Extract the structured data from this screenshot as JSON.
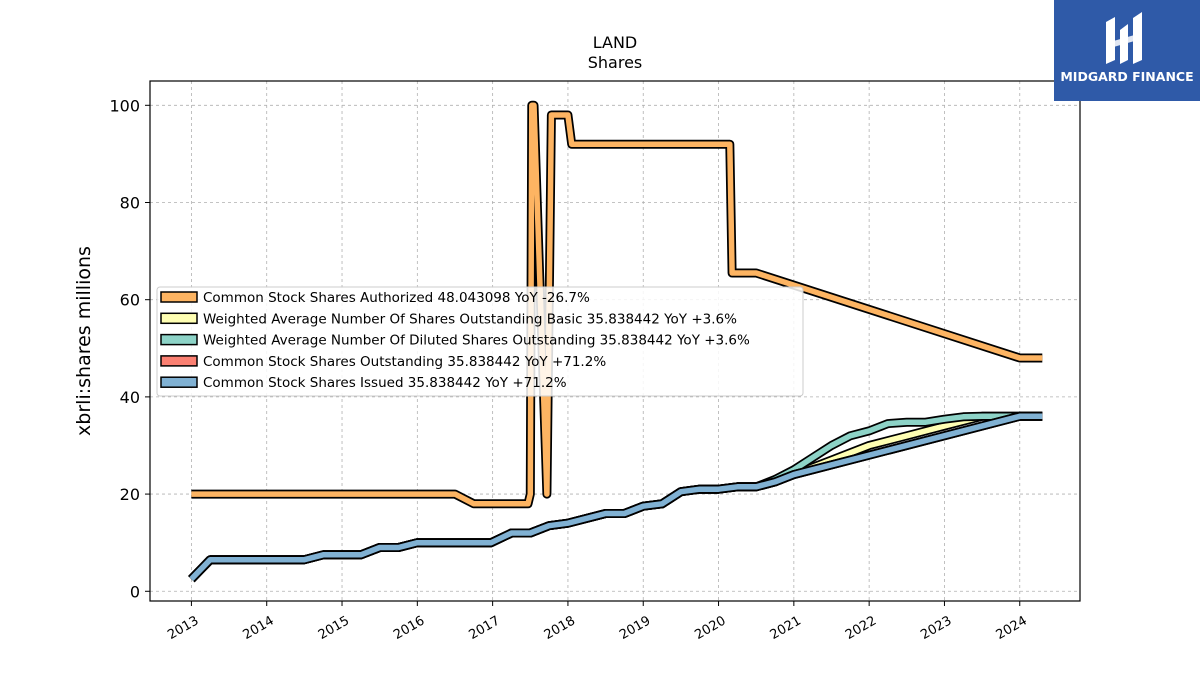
{
  "logo": {
    "text": "MIDGARD FINANCE",
    "color": "#2f5aa8"
  },
  "chart_data": {
    "type": "line",
    "title": "LAND",
    "subtitle": "Shares",
    "ylabel": "xbrli:shares millions",
    "xlim": [
      2012.45,
      2024.8
    ],
    "ylim": [
      -2,
      105
    ],
    "yticks": [
      0,
      20,
      40,
      60,
      80,
      100
    ],
    "xticks": [
      "2013",
      "2014",
      "2015",
      "2016",
      "2017",
      "2018",
      "2019",
      "2020",
      "2021",
      "2022",
      "2023",
      "2024"
    ],
    "grid": true,
    "legend_position": "center-left",
    "series": [
      {
        "name": "Common Stock Shares Authorized",
        "legend": "Common Stock Shares Authorized  48.043098 YoY -26.7%",
        "color": "#fdb462",
        "points": [
          [
            2013.0,
            20
          ],
          [
            2016.5,
            20
          ],
          [
            2016.75,
            18
          ],
          [
            2017.47,
            18
          ],
          [
            2017.5,
            20
          ],
          [
            2017.52,
            100
          ],
          [
            2017.55,
            100
          ],
          [
            2017.72,
            20
          ],
          [
            2017.78,
            98
          ],
          [
            2018.0,
            98
          ],
          [
            2018.05,
            92
          ],
          [
            2020.15,
            92
          ],
          [
            2020.18,
            65.5
          ],
          [
            2020.5,
            65.5
          ],
          [
            2024.0,
            48
          ],
          [
            2024.3,
            48
          ]
        ]
      },
      {
        "name": "Weighted Average Number Of Shares Outstanding Basic",
        "legend": "Weighted Average Number Of Shares Outstanding Basic  35.838442 YoY +3.6%",
        "color": "#ffffb3",
        "points": [
          [
            2013.0,
            2.5
          ],
          [
            2013.25,
            6.5
          ],
          [
            2014.5,
            6.5
          ],
          [
            2014.75,
            7.5
          ],
          [
            2015.25,
            7.5
          ],
          [
            2015.5,
            9
          ],
          [
            2015.75,
            9
          ],
          [
            2016.0,
            10
          ],
          [
            2016.98,
            10
          ],
          [
            2017.25,
            12
          ],
          [
            2017.5,
            12
          ],
          [
            2017.75,
            13.5
          ],
          [
            2018.0,
            14
          ],
          [
            2018.5,
            16
          ],
          [
            2018.75,
            16
          ],
          [
            2019.0,
            17.5
          ],
          [
            2019.25,
            18
          ],
          [
            2019.5,
            20.5
          ],
          [
            2019.75,
            21
          ],
          [
            2020.0,
            21
          ],
          [
            2020.25,
            21.5
          ],
          [
            2020.5,
            21.5
          ],
          [
            2020.75,
            22.5
          ],
          [
            2021.0,
            24
          ],
          [
            2021.5,
            27
          ],
          [
            2022.0,
            30
          ],
          [
            2022.5,
            32
          ],
          [
            2023.0,
            34
          ],
          [
            2023.5,
            36
          ],
          [
            2024.0,
            36
          ],
          [
            2024.3,
            36
          ]
        ]
      },
      {
        "name": "Weighted Average Number Of Diluted Shares Outstanding",
        "legend": "Weighted Average Number Of Diluted Shares Outstanding  35.838442 YoY +3.6%",
        "color": "#8dd3c7",
        "points": [
          [
            2013.0,
            2.5
          ],
          [
            2013.25,
            6.5
          ],
          [
            2014.5,
            6.5
          ],
          [
            2014.75,
            7.5
          ],
          [
            2015.25,
            7.5
          ],
          [
            2015.5,
            9
          ],
          [
            2015.75,
            9
          ],
          [
            2016.0,
            10
          ],
          [
            2016.98,
            10
          ],
          [
            2017.25,
            12
          ],
          [
            2017.5,
            12
          ],
          [
            2017.75,
            13.5
          ],
          [
            2018.0,
            14
          ],
          [
            2018.5,
            16
          ],
          [
            2018.75,
            16
          ],
          [
            2019.0,
            17.5
          ],
          [
            2019.25,
            18
          ],
          [
            2019.5,
            20.5
          ],
          [
            2019.75,
            21
          ],
          [
            2020.0,
            21
          ],
          [
            2020.25,
            21.5
          ],
          [
            2020.5,
            21.5
          ],
          [
            2020.75,
            23
          ],
          [
            2021.0,
            25
          ],
          [
            2021.25,
            27.5
          ],
          [
            2021.5,
            30
          ],
          [
            2021.75,
            32
          ],
          [
            2022.0,
            33
          ],
          [
            2022.25,
            34.5
          ],
          [
            2022.5,
            34.8
          ],
          [
            2022.75,
            34.8
          ],
          [
            2023.0,
            35.4
          ],
          [
            2023.25,
            35.9
          ],
          [
            2023.5,
            36
          ],
          [
            2024.0,
            36
          ],
          [
            2024.3,
            36
          ]
        ]
      },
      {
        "name": "Common Stock Shares Outstanding",
        "legend": "Common Stock Shares Outstanding  35.838442 YoY +71.2%",
        "color": "#fb8072",
        "points": [
          [
            2013.0,
            2.5
          ],
          [
            2013.25,
            6.5
          ],
          [
            2014.5,
            6.5
          ],
          [
            2014.75,
            7.5
          ],
          [
            2015.25,
            7.5
          ],
          [
            2015.5,
            9
          ],
          [
            2015.75,
            9
          ],
          [
            2016.0,
            10
          ],
          [
            2016.98,
            10
          ],
          [
            2017.25,
            12
          ],
          [
            2017.5,
            12
          ],
          [
            2017.75,
            13.5
          ],
          [
            2018.0,
            14
          ],
          [
            2018.5,
            16
          ],
          [
            2018.75,
            16
          ],
          [
            2019.0,
            17.5
          ],
          [
            2019.25,
            18
          ],
          [
            2019.5,
            20.5
          ],
          [
            2019.75,
            21
          ],
          [
            2020.0,
            21
          ],
          [
            2020.25,
            21.5
          ],
          [
            2020.5,
            21.5
          ],
          [
            2020.75,
            22.5
          ],
          [
            2021.0,
            24
          ],
          [
            2024.0,
            36
          ],
          [
            2024.3,
            36
          ]
        ]
      },
      {
        "name": "Common Stock Shares Issued",
        "legend": "Common Stock Shares Issued  35.838442 YoY +71.2%",
        "color": "#80b1d3",
        "points": [
          [
            2013.0,
            2.5
          ],
          [
            2013.25,
            6.5
          ],
          [
            2014.5,
            6.5
          ],
          [
            2014.75,
            7.5
          ],
          [
            2015.25,
            7.5
          ],
          [
            2015.5,
            9
          ],
          [
            2015.75,
            9
          ],
          [
            2016.0,
            10
          ],
          [
            2016.98,
            10
          ],
          [
            2017.25,
            12
          ],
          [
            2017.5,
            12
          ],
          [
            2017.75,
            13.5
          ],
          [
            2018.0,
            14
          ],
          [
            2018.5,
            16
          ],
          [
            2018.75,
            16
          ],
          [
            2019.0,
            17.5
          ],
          [
            2019.25,
            18
          ],
          [
            2019.5,
            20.5
          ],
          [
            2019.75,
            21
          ],
          [
            2020.0,
            21
          ],
          [
            2020.25,
            21.5
          ],
          [
            2020.5,
            21.5
          ],
          [
            2020.75,
            22.5
          ],
          [
            2021.0,
            24
          ],
          [
            2024.0,
            36
          ],
          [
            2024.3,
            36
          ]
        ]
      }
    ]
  }
}
